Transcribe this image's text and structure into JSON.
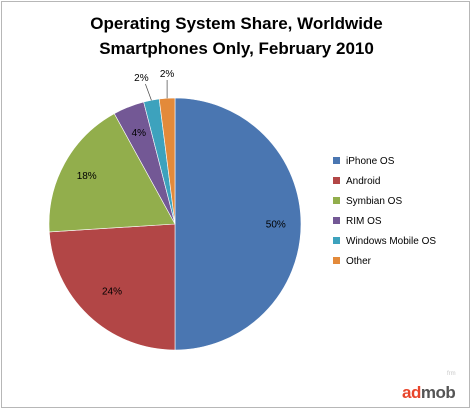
{
  "chart_data": {
    "type": "pie",
    "title_line_1": "Operating System Share, Worldwide",
    "title_line_2": "Smartphones Only, February 2010",
    "slices": [
      {
        "label": "iPhone OS",
        "value": 50,
        "display": "50%",
        "color": "#4a76b1"
      },
      {
        "label": "Android",
        "value": 24,
        "display": "24%",
        "color": "#b24646"
      },
      {
        "label": "Symbian OS",
        "value": 18,
        "display": "18%",
        "color": "#92ae4c"
      },
      {
        "label": "RIM OS",
        "value": 4,
        "display": "4%",
        "color": "#735895"
      },
      {
        "label": "Windows Mobile OS",
        "value": 2,
        "display": "2%",
        "color": "#3da2bd"
      },
      {
        "label": "Other",
        "value": 2,
        "display": "2%",
        "color": "#e38a3a"
      }
    ],
    "legend_placement": "right"
  },
  "brand": {
    "part_a": "ad",
    "part_b": "mob"
  },
  "stamp": "frm"
}
